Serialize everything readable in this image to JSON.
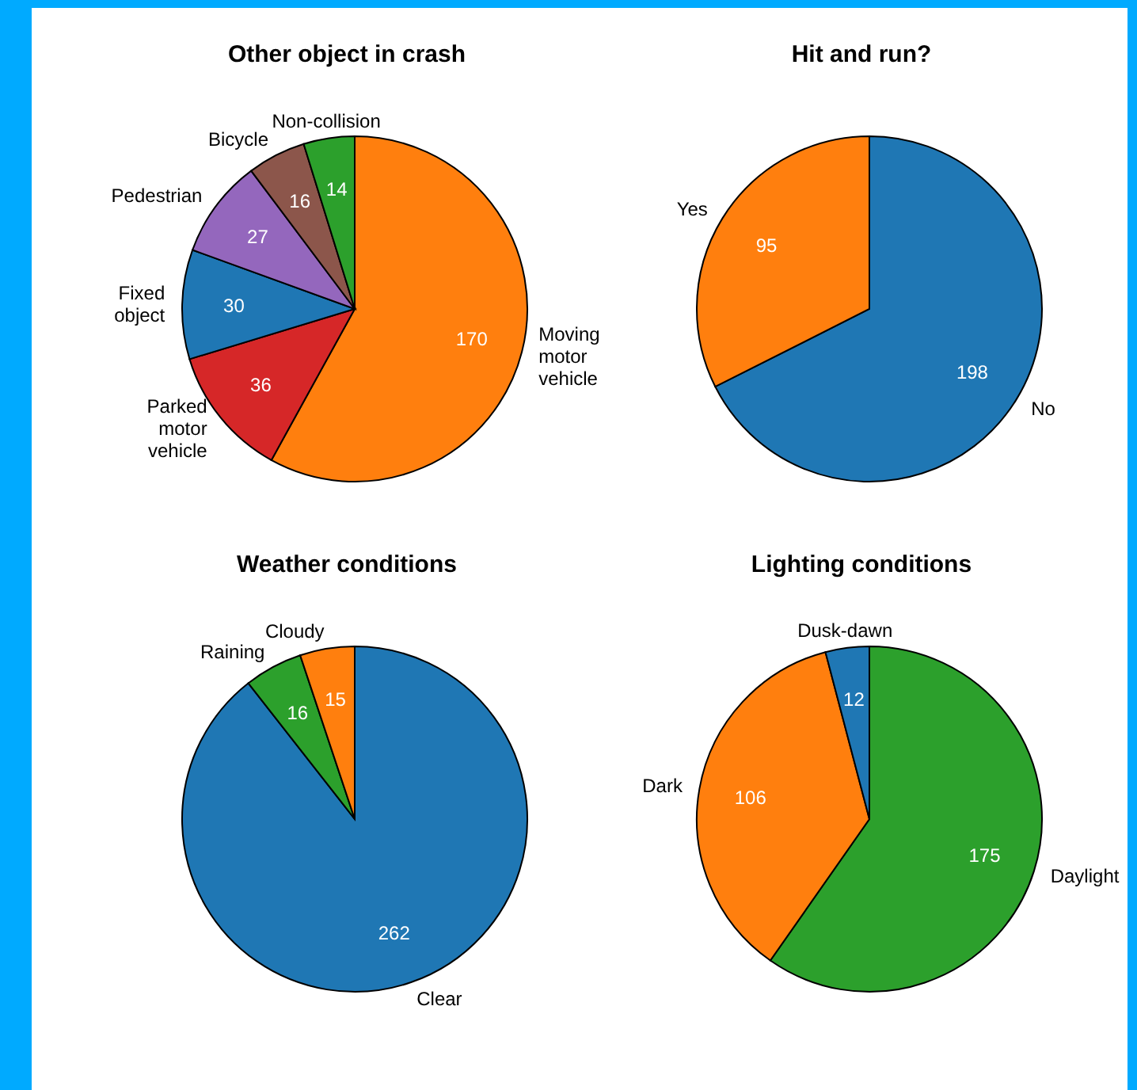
{
  "chart_data": [
    {
      "type": "pie",
      "title": "Other object in crash",
      "categories": [
        "Moving motor vehicle",
        "Parked motor vehicle",
        "Fixed object",
        "Pedestrian",
        "Bicycle",
        "Non-collision"
      ],
      "values": [
        170,
        36,
        30,
        27,
        16,
        14
      ],
      "colors": [
        "#ff7f0e",
        "#d62728",
        "#1f77b4",
        "#9467bd",
        "#8c564b",
        "#2ca02c"
      ],
      "data_labels": true
    },
    {
      "type": "pie",
      "title": "Hit and run?",
      "categories": [
        "No",
        "Yes"
      ],
      "values": [
        198,
        95
      ],
      "colors": [
        "#1f77b4",
        "#ff7f0e"
      ],
      "data_labels": true
    },
    {
      "type": "pie",
      "title": "Weather conditions",
      "categories": [
        "Clear",
        "Raining",
        "Cloudy"
      ],
      "values": [
        262,
        16,
        15
      ],
      "colors": [
        "#1f77b4",
        "#2ca02c",
        "#ff7f0e"
      ],
      "data_labels": true
    },
    {
      "type": "pie",
      "title": "Lighting conditions",
      "categories": [
        "Daylight",
        "Dark",
        "Dusk-dawn"
      ],
      "values": [
        175,
        106,
        12
      ],
      "colors": [
        "#2ca02c",
        "#ff7f0e",
        "#1f77b4"
      ],
      "data_labels": true
    }
  ]
}
